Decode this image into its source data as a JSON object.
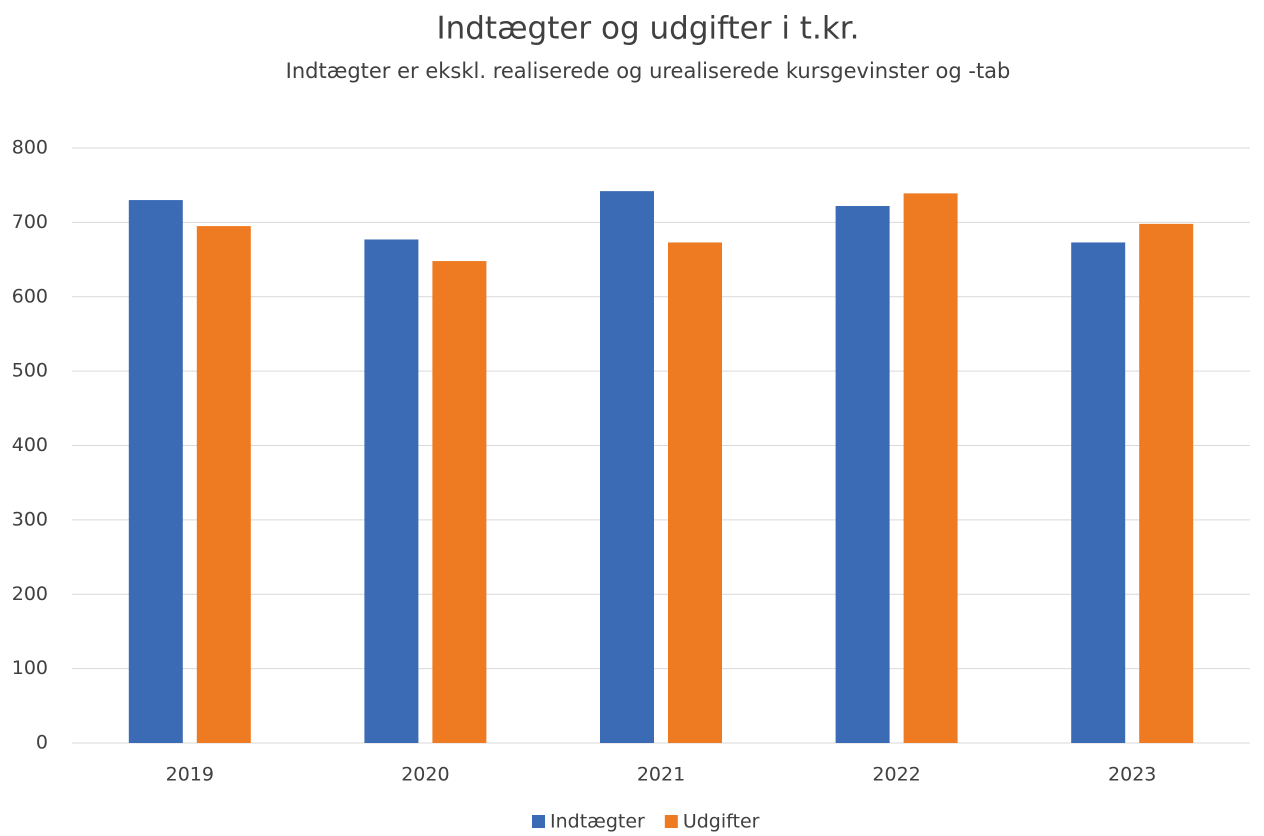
{
  "chart_data": {
    "type": "bar",
    "title": "Indtægter og udgifter i t.kr.",
    "subtitle": "Indtægter er ekskl. realiserede og urealiserede kursgevinster og -tab",
    "categories": [
      "2019",
      "2020",
      "2021",
      "2022",
      "2023"
    ],
    "series": [
      {
        "name": "Indtægter",
        "color": "#3b6bb5",
        "values": [
          730,
          677,
          742,
          722,
          673
        ]
      },
      {
        "name": "Udgifter",
        "color": "#ee7b22",
        "values": [
          695,
          648,
          673,
          739,
          698
        ]
      }
    ],
    "ylim": [
      0,
      800
    ],
    "yticks": [
      0,
      100,
      200,
      300,
      400,
      500,
      600,
      700,
      800
    ],
    "grid": true,
    "legend": "bottom"
  }
}
